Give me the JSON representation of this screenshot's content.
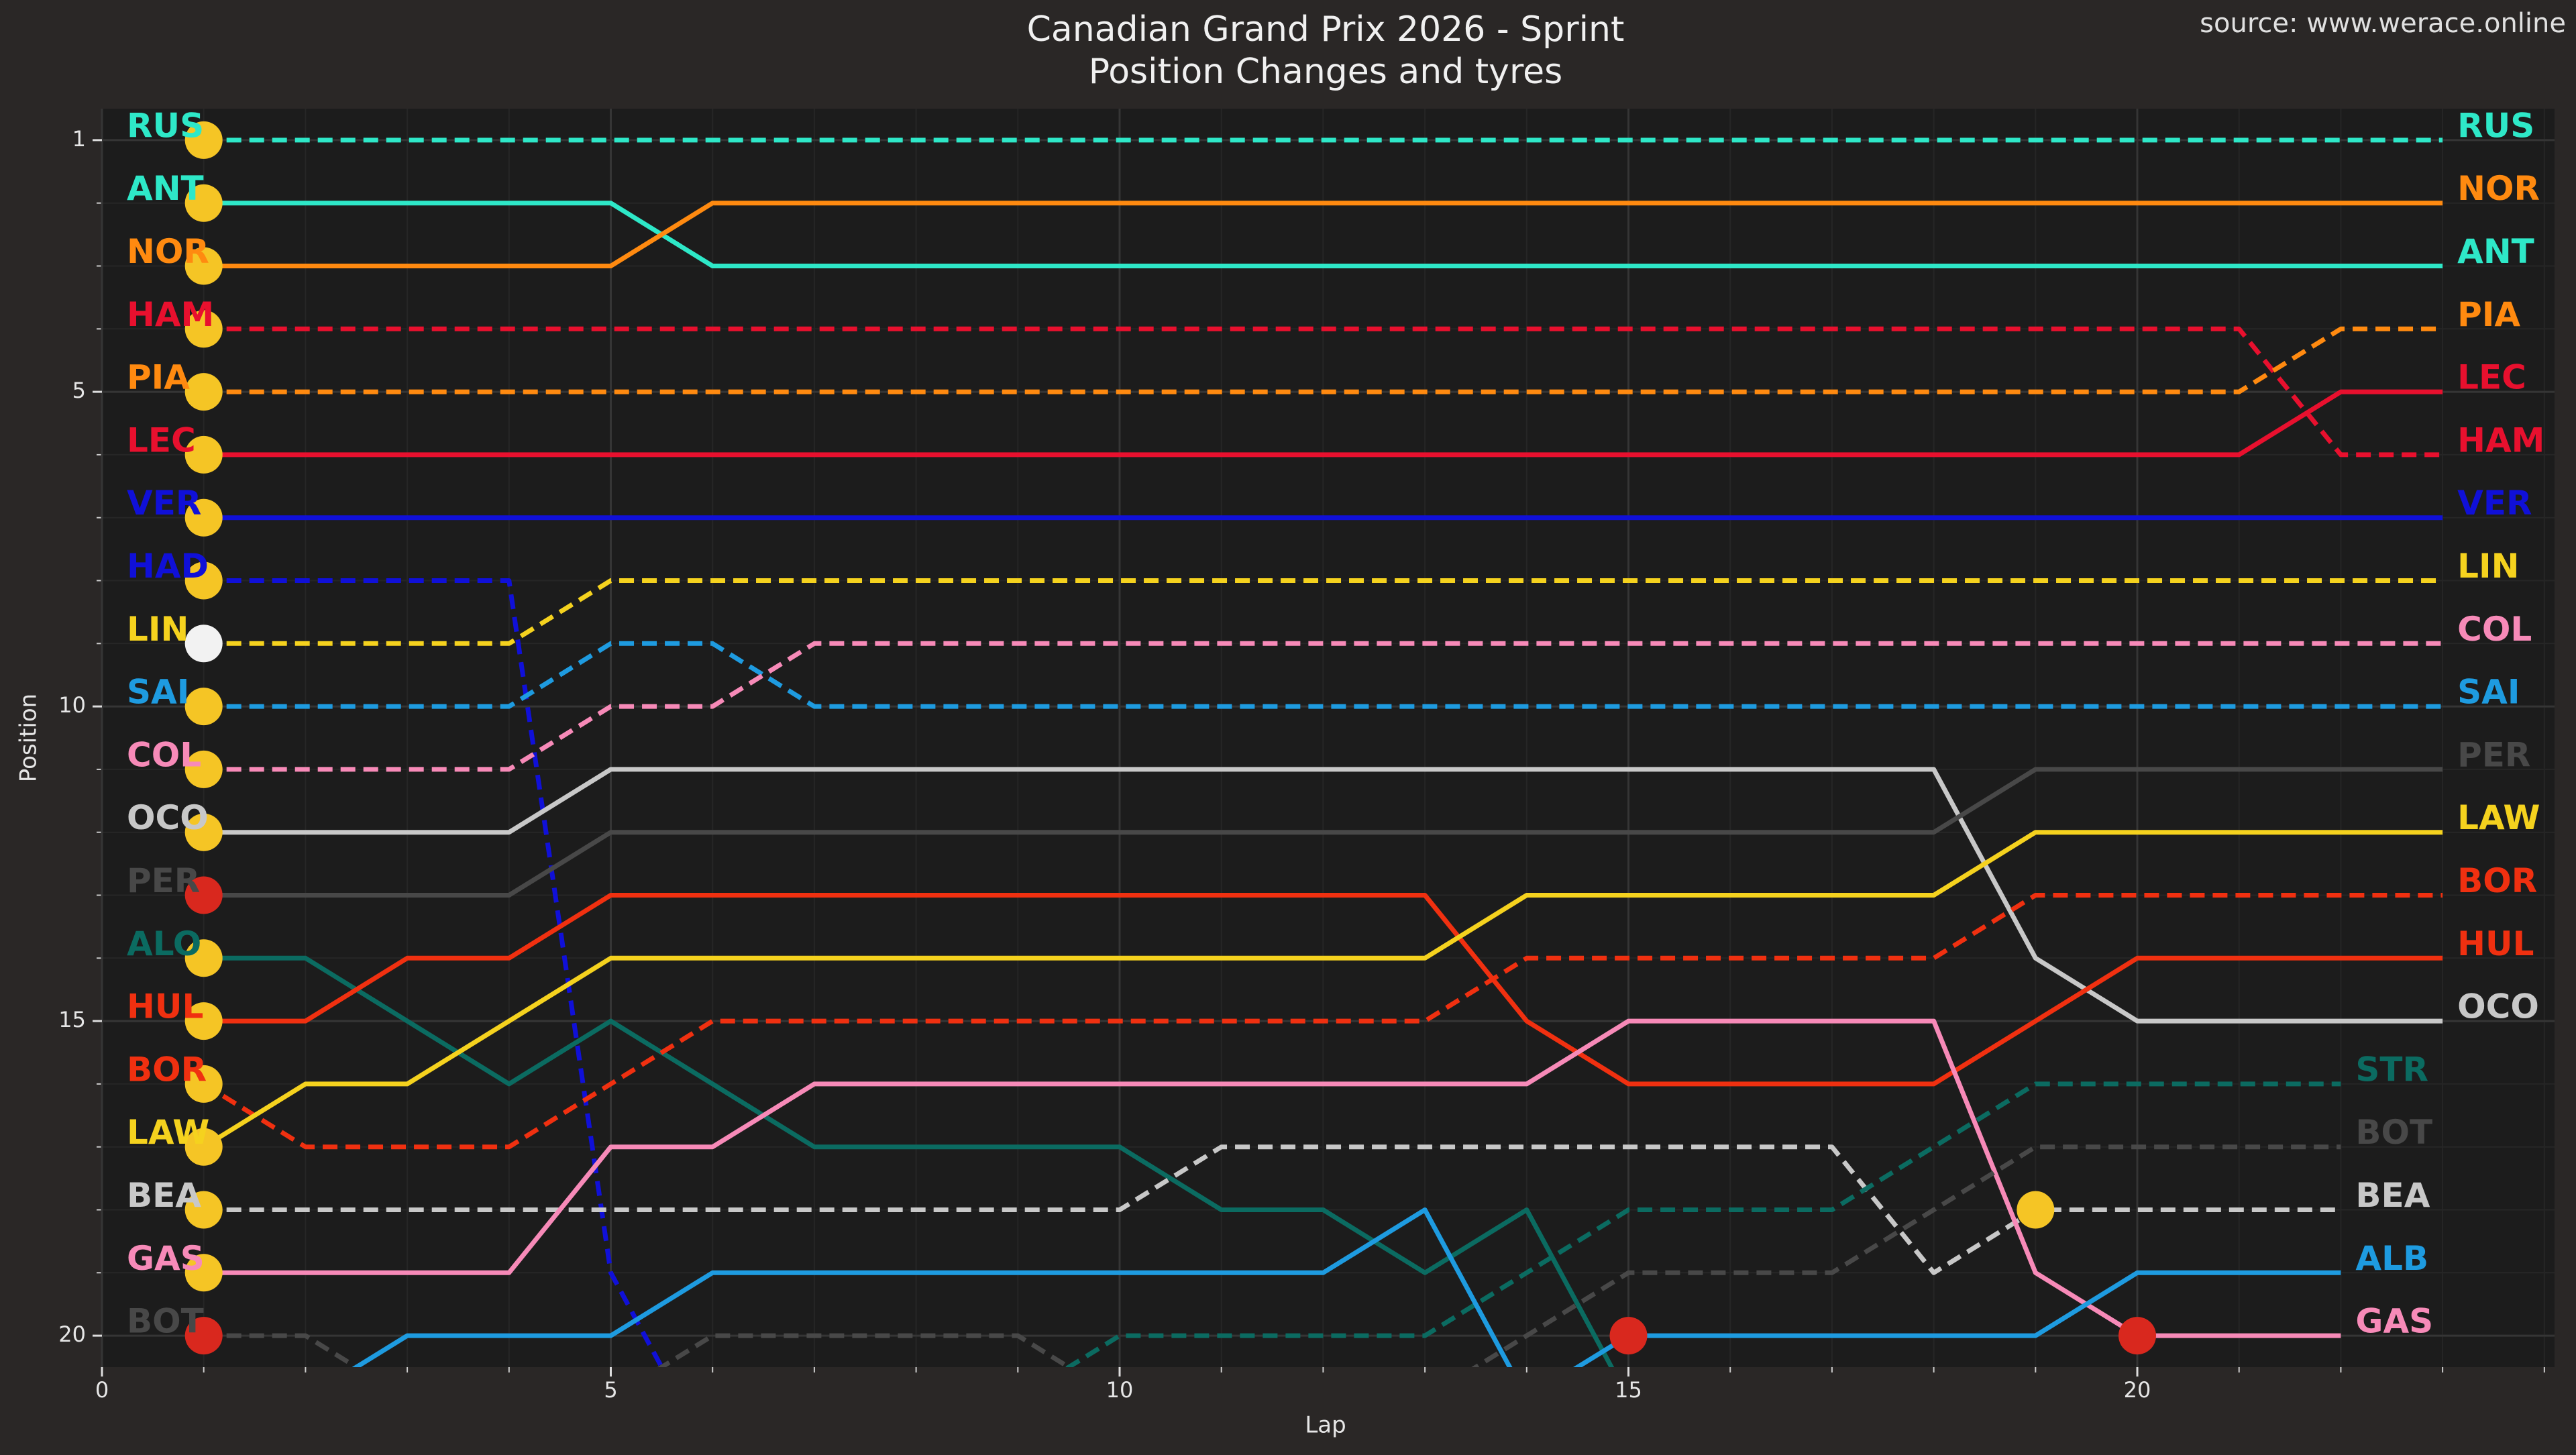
{
  "chart_data": {
    "type": "line",
    "title": "Canadian Grand Prix 2026 - Sprint",
    "subtitle": "Position Changes and tyres",
    "source": "source: www.werace.online",
    "x_label": "Lap",
    "y_label": "Position",
    "xlim": [
      0,
      24.1
    ],
    "ylim": [
      20.5,
      0.5
    ],
    "xticks": [
      0,
      5,
      10,
      15,
      20
    ],
    "yticks": [
      1,
      5,
      10,
      15,
      20
    ],
    "xticks_minor": [
      1,
      2,
      3,
      4,
      6,
      7,
      8,
      9,
      11,
      12,
      13,
      14,
      16,
      17,
      18,
      19,
      21,
      22,
      23,
      24
    ],
    "yticks_minor": [
      2,
      3,
      4,
      6,
      7,
      8,
      9,
      11,
      12,
      13,
      14,
      16,
      17,
      18,
      19
    ],
    "grid": true,
    "x": [
      1,
      2,
      3,
      4,
      5,
      6,
      7,
      8,
      9,
      10,
      11,
      12,
      13,
      14,
      15,
      16,
      17,
      18,
      19,
      20,
      21,
      22,
      23
    ],
    "series": [
      {
        "name": "RUS",
        "color": "#2ee8c8",
        "linestyle": "dashed",
        "values": [
          1,
          1,
          1,
          1,
          1,
          1,
          1,
          1,
          1,
          1,
          1,
          1,
          1,
          1,
          1,
          1,
          1,
          1,
          1,
          1,
          1,
          1,
          1
        ]
      },
      {
        "name": "ANT",
        "color": "#2ee8c8",
        "linestyle": "solid",
        "values": [
          2,
          2,
          2,
          2,
          2,
          3,
          3,
          3,
          3,
          3,
          3,
          3,
          3,
          3,
          3,
          3,
          3,
          3,
          3,
          3,
          3,
          3,
          3
        ]
      },
      {
        "name": "NOR",
        "color": "#ff8a10",
        "linestyle": "solid",
        "values": [
          3,
          3,
          3,
          3,
          3,
          2,
          2,
          2,
          2,
          2,
          2,
          2,
          2,
          2,
          2,
          2,
          2,
          2,
          2,
          2,
          2,
          2,
          2
        ]
      },
      {
        "name": "HAM",
        "color": "#e8102e",
        "linestyle": "dashed",
        "values": [
          4,
          4,
          4,
          4,
          4,
          4,
          4,
          4,
          4,
          4,
          4,
          4,
          4,
          4,
          4,
          4,
          4,
          4,
          4,
          4,
          4,
          6,
          6
        ]
      },
      {
        "name": "PIA",
        "color": "#ff8a10",
        "linestyle": "dashed",
        "values": [
          5,
          5,
          5,
          5,
          5,
          5,
          5,
          5,
          5,
          5,
          5,
          5,
          5,
          5,
          5,
          5,
          5,
          5,
          5,
          5,
          5,
          4,
          4
        ]
      },
      {
        "name": "LEC",
        "color": "#e8102e",
        "linestyle": "solid",
        "values": [
          6,
          6,
          6,
          6,
          6,
          6,
          6,
          6,
          6,
          6,
          6,
          6,
          6,
          6,
          6,
          6,
          6,
          6,
          6,
          6,
          6,
          5,
          5
        ]
      },
      {
        "name": "VER",
        "color": "#1010d8",
        "linestyle": "solid",
        "values": [
          7,
          7,
          7,
          7,
          7,
          7,
          7,
          7,
          7,
          7,
          7,
          7,
          7,
          7,
          7,
          7,
          7,
          7,
          7,
          7,
          7,
          7,
          7
        ]
      },
      {
        "name": "HAD",
        "color": "#1010d8",
        "linestyle": "dashed",
        "values": [
          8,
          8,
          8,
          8,
          19,
          22,
          null,
          null,
          null,
          null,
          null,
          null,
          null,
          null,
          null,
          null,
          null,
          null,
          null,
          null,
          null,
          null,
          null
        ]
      },
      {
        "name": "LIN",
        "color": "#f5d21e",
        "linestyle": "dashed",
        "values": [
          9,
          9,
          9,
          9,
          8,
          8,
          8,
          8,
          8,
          8,
          8,
          8,
          8,
          8,
          8,
          8,
          8,
          8,
          8,
          8,
          8,
          8,
          8
        ]
      },
      {
        "name": "SAI",
        "color": "#1e9be0",
        "linestyle": "dashed",
        "values": [
          10,
          10,
          10,
          10,
          9,
          9,
          10,
          10,
          10,
          10,
          10,
          10,
          10,
          10,
          10,
          10,
          10,
          10,
          10,
          10,
          10,
          10,
          10
        ]
      },
      {
        "name": "COL",
        "color": "#f78ab8",
        "linestyle": "dashed",
        "values": [
          11,
          11,
          11,
          11,
          10,
          10,
          9,
          9,
          9,
          9,
          9,
          9,
          9,
          9,
          9,
          9,
          9,
          9,
          9,
          9,
          9,
          9,
          9
        ]
      },
      {
        "name": "OCO",
        "color": "#c8c8c8",
        "linestyle": "solid",
        "values": [
          12,
          12,
          12,
          12,
          11,
          11,
          11,
          11,
          11,
          11,
          11,
          11,
          11,
          11,
          11,
          11,
          11,
          11,
          14,
          15,
          15,
          15,
          15
        ]
      },
      {
        "name": "PER",
        "color": "#484848",
        "linestyle": "solid",
        "values": [
          13,
          13,
          13,
          13,
          12,
          12,
          12,
          12,
          12,
          12,
          12,
          12,
          12,
          12,
          12,
          12,
          12,
          12,
          11,
          11,
          11,
          11,
          11
        ]
      },
      {
        "name": "ALO",
        "color": "#0b6b61",
        "linestyle": "solid",
        "values": [
          14,
          14,
          15,
          16,
          15,
          16,
          17,
          17,
          17,
          17,
          18,
          18,
          19,
          18,
          21,
          null,
          null,
          null,
          null,
          null,
          null,
          null,
          null
        ]
      },
      {
        "name": "HUL",
        "color": "#f03010",
        "linestyle": "solid",
        "values": [
          15,
          15,
          14,
          14,
          13,
          13,
          13,
          13,
          13,
          13,
          13,
          13,
          13,
          15,
          16,
          16,
          16,
          16,
          15,
          14,
          14,
          14,
          14
        ]
      },
      {
        "name": "BOR",
        "color": "#f03010",
        "linestyle": "dashed",
        "values": [
          16,
          17,
          17,
          17,
          16,
          15,
          15,
          15,
          15,
          15,
          15,
          15,
          15,
          14,
          14,
          14,
          14,
          14,
          13,
          13,
          13,
          13,
          13
        ]
      },
      {
        "name": "LAW",
        "color": "#f5d21e",
        "linestyle": "solid",
        "values": [
          17,
          16,
          16,
          15,
          14,
          14,
          14,
          14,
          14,
          14,
          14,
          14,
          14,
          13,
          13,
          13,
          13,
          13,
          12,
          12,
          12,
          12,
          12
        ]
      },
      {
        "name": "BEA",
        "color": "#c8c8c8",
        "linestyle": "dashed",
        "values": [
          18,
          18,
          18,
          18,
          18,
          18,
          18,
          18,
          18,
          18,
          17,
          17,
          17,
          17,
          17,
          17,
          17,
          19,
          18,
          18,
          18,
          18,
          null
        ]
      },
      {
        "name": "GAS",
        "color": "#f78ab8",
        "linestyle": "solid",
        "values": [
          19,
          19,
          19,
          19,
          17,
          17,
          16,
          16,
          16,
          16,
          16,
          16,
          16,
          16,
          15,
          15,
          15,
          15,
          19,
          20,
          20,
          20,
          null
        ]
      },
      {
        "name": "BOT",
        "color": "#484848",
        "linestyle": "dashed",
        "values": [
          20,
          20,
          21,
          21,
          21,
          20,
          20,
          20,
          20,
          21,
          21,
          21,
          21,
          20,
          19,
          19,
          19,
          18,
          17,
          17,
          17,
          17,
          null
        ]
      },
      {
        "name": "STR",
        "color": "#0b6b61",
        "linestyle": "dashed",
        "values": [
          22,
          22,
          22,
          22,
          22,
          21,
          21,
          21,
          21,
          20,
          20,
          20,
          20,
          19,
          18,
          18,
          18,
          17,
          16,
          16,
          16,
          16,
          null
        ]
      },
      {
        "name": "ALB",
        "color": "#1e9be0",
        "linestyle": "solid",
        "values": [
          21,
          21,
          20,
          20,
          20,
          19,
          19,
          19,
          19,
          19,
          19,
          19,
          18,
          21,
          20,
          20,
          20,
          20,
          20,
          19,
          19,
          19,
          null
        ]
      }
    ],
    "markers": {
      "x": [
        1,
        1,
        1,
        1,
        1,
        1,
        1,
        1,
        1,
        1,
        1,
        1,
        1,
        1,
        1,
        1,
        1,
        1,
        1,
        1,
        19,
        15,
        20
      ],
      "y": [
        1,
        2,
        3,
        4,
        5,
        6,
        7,
        8,
        9,
        10,
        11,
        12,
        13,
        14,
        15,
        16,
        17,
        18,
        19,
        20,
        18,
        20,
        20
      ],
      "colors": [
        "#f5c525",
        "#f5c525",
        "#f5c525",
        "#f5c525",
        "#f5c525",
        "#f5c525",
        "#f5c525",
        "#f5c525",
        "#f2f2f2",
        "#f5c525",
        "#f5c525",
        "#f5c525",
        "#d9281e",
        "#f5c525",
        "#f5c525",
        "#f5c525",
        "#f5c525",
        "#f5c525",
        "#f5c525",
        "#d9281e",
        "#f5c525",
        "#d9281e",
        "#d9281e"
      ]
    }
  }
}
